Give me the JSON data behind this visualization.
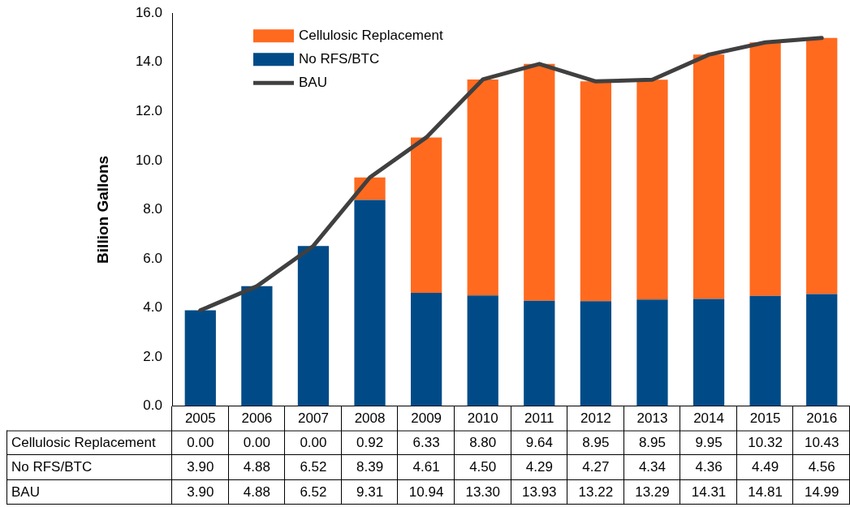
{
  "chart_data": {
    "type": "bar",
    "stacked": true,
    "ylabel": "Billion Gallons",
    "categories": [
      "2005",
      "2006",
      "2007",
      "2008",
      "2009",
      "2010",
      "2011",
      "2012",
      "2013",
      "2014",
      "2015",
      "2016"
    ],
    "series": [
      {
        "name": "No RFS/BTC",
        "color": "#004b87",
        "values": [
          3.9,
          4.88,
          6.52,
          8.39,
          4.61,
          4.5,
          4.29,
          4.27,
          4.34,
          4.36,
          4.49,
          4.56
        ],
        "value_labels": [
          "3.90",
          "4.88",
          "6.52",
          "8.39",
          "4.61",
          "4.50",
          "4.29",
          "4.27",
          "4.34",
          "4.36",
          "4.49",
          "4.56"
        ]
      },
      {
        "name": "Cellulosic Replacement",
        "color": "#ff6a1f",
        "values": [
          0.0,
          0.0,
          0.0,
          0.92,
          6.33,
          8.8,
          9.64,
          8.95,
          8.95,
          9.95,
          10.32,
          10.43
        ],
        "value_labels": [
          "0.00",
          "0.00",
          "0.00",
          "0.92",
          "6.33",
          "8.80",
          "9.64",
          "8.95",
          "8.95",
          "9.95",
          "10.32",
          "10.43"
        ]
      },
      {
        "name": "BAU",
        "type": "line",
        "color": "#404040",
        "marker": "none",
        "line_style": "solid",
        "values": [
          3.9,
          4.88,
          6.52,
          9.31,
          10.94,
          13.3,
          13.93,
          13.22,
          13.29,
          14.31,
          14.81,
          14.99
        ],
        "value_labels": [
          "3.90",
          "4.88",
          "6.52",
          "9.31",
          "10.94",
          "13.30",
          "13.93",
          "13.22",
          "13.29",
          "14.31",
          "14.81",
          "14.99"
        ]
      }
    ],
    "ylim": [
      0,
      16
    ],
    "yticks": [
      {
        "value": 0,
        "label": "0.0"
      },
      {
        "value": 2,
        "label": "2.0"
      },
      {
        "value": 4,
        "label": "4.0"
      },
      {
        "value": 6,
        "label": "6.0"
      },
      {
        "value": 8,
        "label": "8.0"
      },
      {
        "value": 10,
        "label": "10.0"
      },
      {
        "value": 12,
        "label": "12.0"
      },
      {
        "value": 14,
        "label": "14.0"
      },
      {
        "value": 16,
        "label": "16.0"
      }
    ],
    "grid": false,
    "legend": "top left"
  }
}
